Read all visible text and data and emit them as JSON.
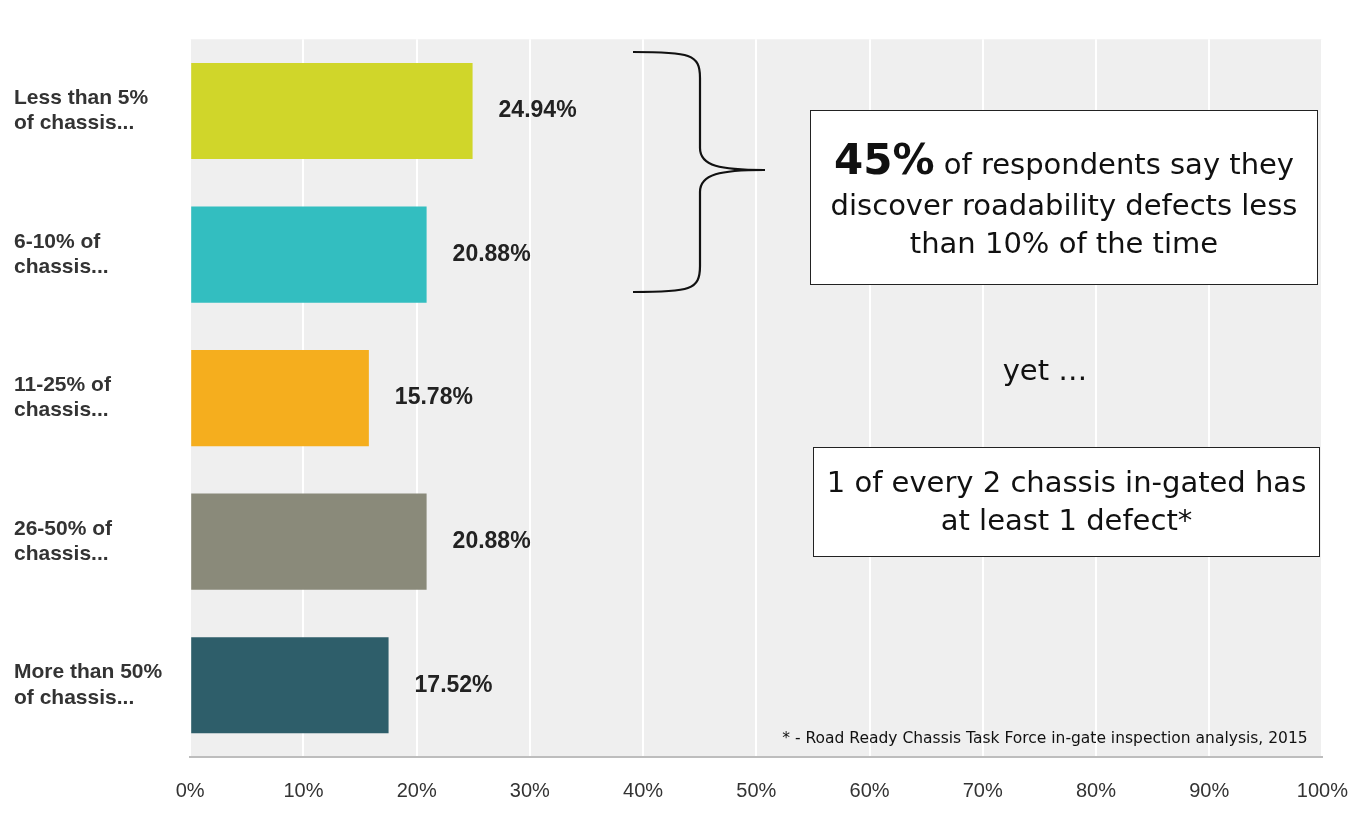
{
  "chart_data": {
    "type": "bar",
    "orientation": "horizontal",
    "categories": [
      "Less than 5%\nof chassis...",
      "6-10% of\nchassis...",
      "11-25% of\nchassis...",
      "26-50% of\nchassis...",
      "More than 50%\nof chassis..."
    ],
    "values": [
      24.94,
      20.88,
      15.78,
      20.88,
      17.52
    ],
    "colors": [
      "#d0d62a",
      "#33bec0",
      "#f5ae1e",
      "#8a8a7a",
      "#2e5e6a"
    ],
    "value_labels": [
      "24.94%",
      "20.88%",
      "15.78%",
      "20.88%",
      "17.52%"
    ],
    "xlim": [
      0,
      100
    ],
    "xticks": [
      {
        "value": 0,
        "label": "0%"
      },
      {
        "value": 10,
        "label": "10%"
      },
      {
        "value": 20,
        "label": "20%"
      },
      {
        "value": 30,
        "label": "30%"
      },
      {
        "value": 40,
        "label": "40%"
      },
      {
        "value": 50,
        "label": "50%"
      },
      {
        "value": 60,
        "label": "60%"
      },
      {
        "value": 70,
        "label": "70%"
      },
      {
        "value": 80,
        "label": "80%"
      },
      {
        "value": 90,
        "label": "90%"
      },
      {
        "value": 100,
        "label": "100%"
      }
    ],
    "grid": "x",
    "legend": false,
    "annotations": [
      "45% of respondents say they discover roadability defects less than 10% of the time",
      "yet …",
      "1 of every 2 chassis in-gated has at least 1 defect*",
      "* - Road Ready Chassis Task Force in-gate inspection analysis, 2015"
    ]
  }
}
